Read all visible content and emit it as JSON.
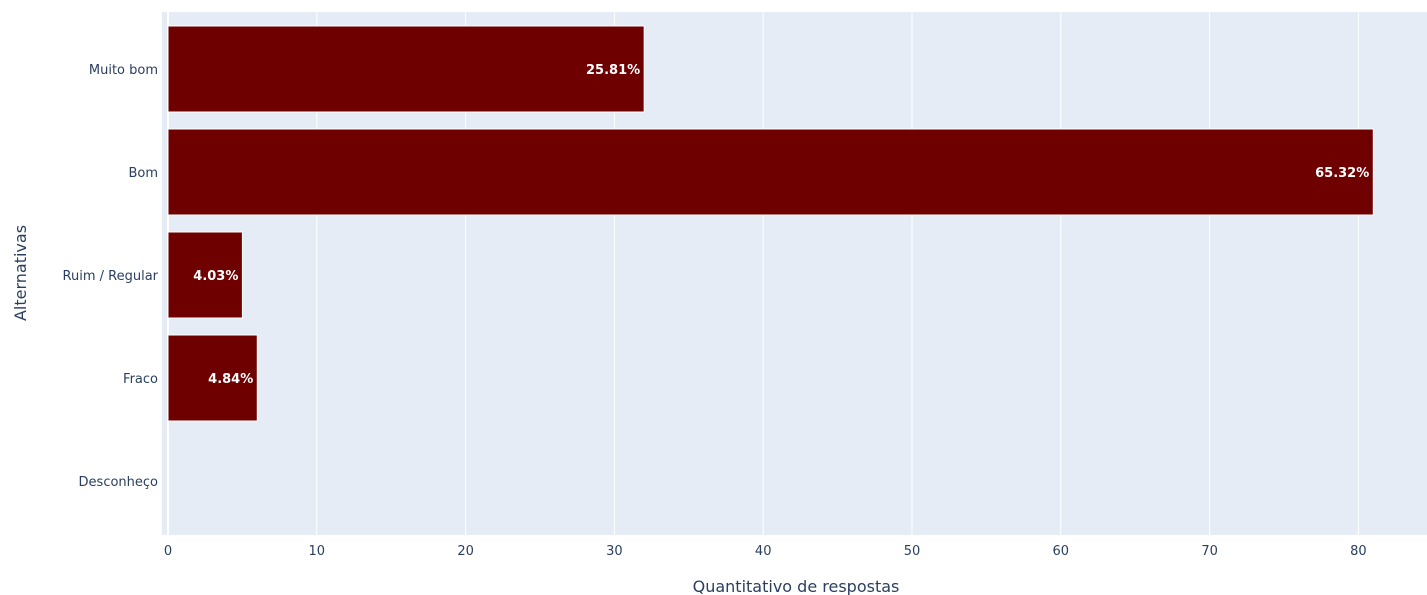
{
  "chart_data": {
    "type": "bar",
    "orientation": "horizontal",
    "categories": [
      "Muito bom",
      "Bom",
      "Ruim / Regular",
      "Fraco",
      "Desconheço"
    ],
    "values": [
      32,
      81,
      5,
      6,
      0
    ],
    "labels": [
      "25.81%",
      "65.32%",
      "4.03%",
      "4.84%",
      ""
    ],
    "xlabel": "Quantitativo de respostas",
    "ylabel": "Alternativas",
    "xlim": [
      0,
      85
    ],
    "xticks": [
      0,
      10,
      20,
      30,
      40,
      50,
      60,
      70,
      80
    ],
    "grid": true,
    "colors": {
      "bar": "#6e0000",
      "plot_bg": "#e5ecf6",
      "grid": "#ffffff",
      "text": "#2a3f5f",
      "bar_label": "#ffffff"
    }
  }
}
